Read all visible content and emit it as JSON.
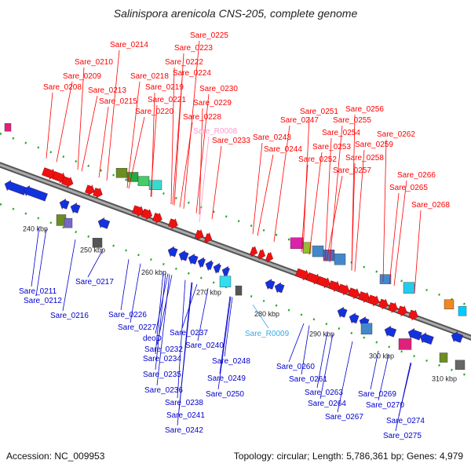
{
  "title": "Salinispora arenicola CNS-205, complete genome",
  "footer": {
    "accession": "Accession: NC_009953",
    "topology": "Topology: circular; Length: 5,786,361 bp; Genes: 4,979"
  },
  "colors": {
    "forward_label": "#ff0000",
    "reverse_label": "#0000cc",
    "rna_forward_label": "#ff99cc",
    "rna_reverse_label": "#33aaee",
    "forward_gene": "#ee1111",
    "reverse_gene": "#1133dd",
    "backbone": "#888888",
    "tick": "#22aa22"
  },
  "scale_ticks": [
    "240 kbp",
    "250 kbp",
    "260 kbp",
    "270 kbp",
    "280 kbp",
    "290 kbp",
    "300 kbp",
    "310 kbp"
  ],
  "forward_labels": [
    "Sare_0225",
    "Sare_0214",
    "Sare_0223",
    "Sare_0210",
    "Sare_0222",
    "Sare_0209",
    "Sare_0218",
    "Sare_0224",
    "Sare_0208",
    "Sare_0219",
    "Sare_0213",
    "Sare_0230",
    "Sare_0215",
    "Sare_0221",
    "Sare_0229",
    "Sare_0220",
    "Sare_0228",
    "Sare_0233",
    "Sare_0251",
    "Sare_0256",
    "Sare_0247",
    "Sare_0255",
    "Sare_0243",
    "Sare_0254",
    "Sare_0262",
    "Sare_0244",
    "Sare_0253",
    "Sare_0259",
    "Sare_0252",
    "Sare_0258",
    "Sare_0257",
    "Sare_0266",
    "Sare_0265",
    "Sare_0268"
  ],
  "forward_rna_labels": [
    "Sare_R0008"
  ],
  "reverse_labels": [
    "Sare_0211",
    "Sare_0212",
    "Sare_0216",
    "Sare_0217",
    "Sare_0226",
    "Sare_0227",
    "deoD",
    "Sare_0232",
    "Sare_0234",
    "Sare_0235",
    "Sare_0236",
    "Sare_0237",
    "Sare_0238",
    "Sare_0240",
    "Sare_0241",
    "Sare_0242",
    "Sare_0248",
    "Sare_0249",
    "Sare_0250",
    "Sare_0260",
    "Sare_0261",
    "Sare_0263",
    "Sare_0264",
    "Sare_0267",
    "Sare_0269",
    "Sare_0270",
    "Sare_0274",
    "Sare_0275"
  ],
  "reverse_rna_labels": [
    "Sare_R0009"
  ]
}
